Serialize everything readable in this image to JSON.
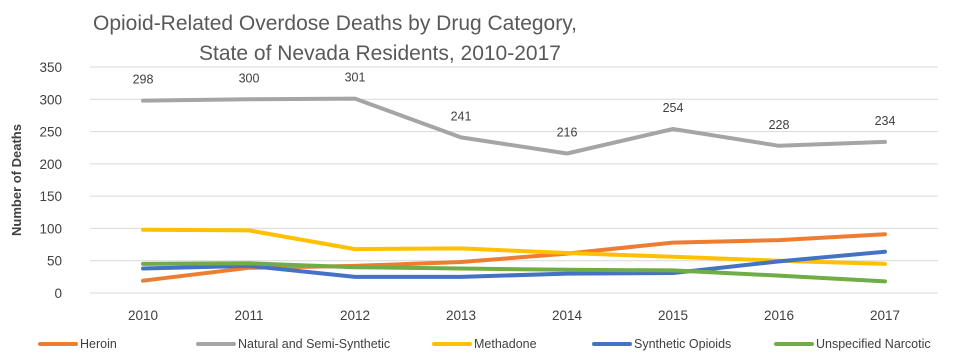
{
  "chart_data": {
    "type": "line",
    "title_lines": [
      "Opioid-Related Overdose Deaths by Drug Category,",
      "State of Nevada Residents, 2010-2017"
    ],
    "xlabel": "",
    "ylabel": "Number of Deaths",
    "ylim": [
      0,
      350
    ],
    "yticks": [
      0,
      50,
      100,
      150,
      200,
      250,
      300,
      350
    ],
    "categories": [
      "2010",
      "2011",
      "2012",
      "2013",
      "2014",
      "2015",
      "2016",
      "2017"
    ],
    "grid": true,
    "legend_position": "bottom",
    "series": [
      {
        "name": "Heroin",
        "color": "#ed7d31",
        "values": [
          19,
          39,
          42,
          48,
          61,
          78,
          82,
          91
        ]
      },
      {
        "name": "Natural and Semi-Synthetic",
        "color": "#a5a5a5",
        "values": [
          298,
          300,
          301,
          241,
          216,
          254,
          228,
          234
        ],
        "data_labels": true
      },
      {
        "name": "Methadone",
        "color": "#ffc000",
        "values": [
          98,
          97,
          68,
          69,
          62,
          56,
          50,
          45
        ]
      },
      {
        "name": "Synthetic Opioids",
        "color": "#4472c4",
        "values": [
          38,
          42,
          25,
          25,
          30,
          31,
          49,
          64
        ]
      },
      {
        "name": "Unspecified Narcotic",
        "color": "#70ad47",
        "values": [
          45,
          46,
          40,
          38,
          36,
          35,
          27,
          18
        ]
      }
    ]
  }
}
